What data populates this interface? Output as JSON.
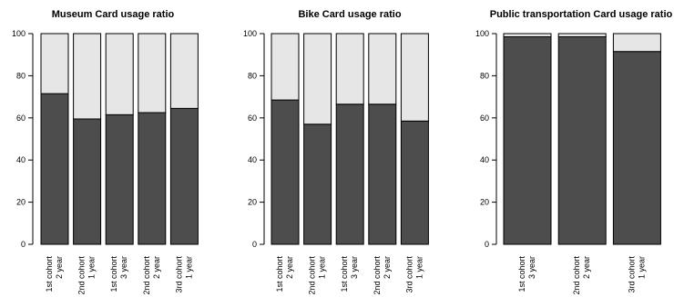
{
  "chart_data": [
    {
      "type": "bar",
      "stacked": true,
      "title": "Museum Card usage ratio",
      "categories": [
        [
          "1st cohort",
          "2 year"
        ],
        [
          "2nd cohort",
          "1 year"
        ],
        [
          "1st cohort",
          "3 year"
        ],
        [
          "2nd cohort",
          "2 year"
        ],
        [
          "3rd cohort",
          "1 year"
        ]
      ],
      "series": [
        {
          "values": [
            71.5,
            59.5,
            61.5,
            62.5,
            64.5
          ],
          "color": "#4d4d4d"
        },
        {
          "values": [
            28.5,
            40.5,
            38.5,
            37.5,
            35.5
          ],
          "color": "#e6e6e6"
        }
      ],
      "ylim": [
        0,
        100
      ],
      "yticks": [
        "0",
        "20",
        "40",
        "60",
        "80",
        "100"
      ],
      "grid": false
    },
    {
      "type": "bar",
      "stacked": true,
      "title": "Bike Card usage ratio",
      "categories": [
        [
          "1st cohort",
          "2 year"
        ],
        [
          "2nd cohort",
          "1 year"
        ],
        [
          "1st cohort",
          "3 year"
        ],
        [
          "2nd cohort",
          "2 year"
        ],
        [
          "3rd cohort",
          "1 year"
        ]
      ],
      "series": [
        {
          "values": [
            68.5,
            57.0,
            66.5,
            66.5,
            58.5
          ],
          "color": "#4d4d4d"
        },
        {
          "values": [
            31.5,
            43.0,
            33.5,
            33.5,
            41.5
          ],
          "color": "#e6e6e6"
        }
      ],
      "ylim": [
        0,
        100
      ],
      "yticks": [
        "0",
        "20",
        "40",
        "60",
        "80",
        "100"
      ],
      "grid": false
    },
    {
      "type": "bar",
      "stacked": true,
      "title": "Public transportation Card usage ratio",
      "categories": [
        [
          "1st cohort",
          "3 year"
        ],
        [
          "2nd cohort",
          "2 year"
        ],
        [
          "3rd cohort",
          "1 year"
        ]
      ],
      "series": [
        {
          "values": [
            98.5,
            98.5,
            91.5
          ],
          "color": "#4d4d4d"
        },
        {
          "values": [
            1.5,
            1.5,
            8.5
          ],
          "color": "#e6e6e6"
        }
      ],
      "ylim": [
        0,
        100
      ],
      "yticks": [
        "0",
        "20",
        "40",
        "60",
        "80",
        "100"
      ],
      "grid": false
    }
  ]
}
